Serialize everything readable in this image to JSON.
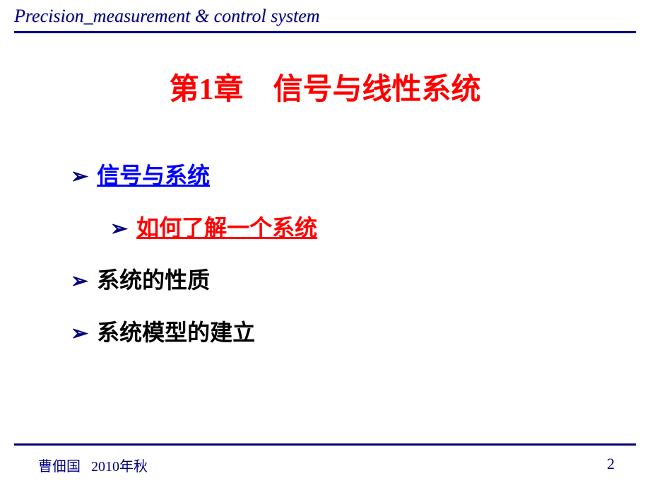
{
  "header": {
    "title": "Precision_measurement & control system"
  },
  "title": {
    "prefix": "第",
    "number": "1",
    "suffix": "章",
    "spacer": "　",
    "main": "信号与线性系统"
  },
  "bullets": [
    {
      "text": "信号与系统",
      "style": "blue",
      "indent": false,
      "link": true
    },
    {
      "text": "如何了解一个系统",
      "style": "red",
      "indent": true,
      "link": true
    },
    {
      "text": "系统的性质",
      "style": "black",
      "indent": false,
      "link": false
    },
    {
      "text": "系统模型的建立",
      "style": "black",
      "indent": false,
      "link": false
    }
  ],
  "footer": {
    "author": "曹佃国",
    "date_year": "2010",
    "date_suffix": "年秋",
    "page": "2"
  },
  "colors": {
    "navy": "#000080",
    "red": "#ff0000",
    "blue": "#0000ff",
    "black": "#000000",
    "background": "#ffffff"
  }
}
